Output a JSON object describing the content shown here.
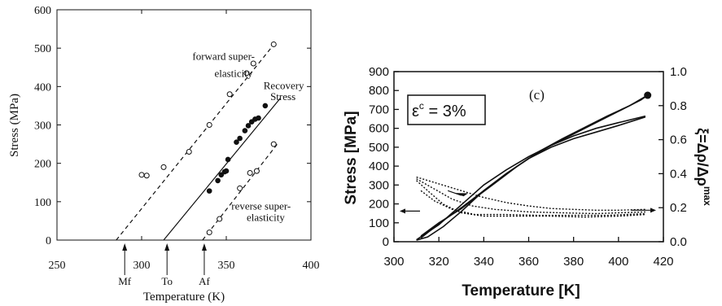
{
  "chart_data": [
    {
      "type": "scatter",
      "title": "",
      "xlabel": "Temperature (K)",
      "ylabel": "Stress (MPa)",
      "xlim": [
        250,
        400
      ],
      "ylim": [
        0,
        600
      ],
      "xticks": [
        "250",
        "300",
        "350",
        "400"
      ],
      "yticks": [
        "0",
        "100",
        "200",
        "300",
        "400",
        "500",
        "600"
      ],
      "grid": false,
      "series": [
        {
          "name": "forward super-elasticity",
          "marker": "open-circle",
          "points": [
            [
              300,
              170
            ],
            [
              303,
              168
            ],
            [
              313,
              190
            ],
            [
              328,
              230
            ],
            [
              340,
              300
            ],
            [
              352,
              380
            ],
            [
              362,
              435
            ],
            [
              366,
              460
            ],
            [
              378,
              510
            ]
          ]
        },
        {
          "name": "Recovery Stress",
          "marker": "filled-circle",
          "points": [
            [
              340,
              128
            ],
            [
              345,
              155
            ],
            [
              347,
              170
            ],
            [
              349,
              178
            ],
            [
              350,
              180
            ],
            [
              351,
              210
            ],
            [
              356,
              255
            ],
            [
              358,
              265
            ],
            [
              361,
              285
            ],
            [
              363,
              298
            ],
            [
              365,
              308
            ],
            [
              367,
              315
            ],
            [
              369,
              318
            ],
            [
              373,
              350
            ]
          ]
        },
        {
          "name": "reverse super-elasticity",
          "marker": "open-circle",
          "points": [
            [
              340,
              20
            ],
            [
              346,
              55
            ],
            [
              358,
              135
            ],
            [
              364,
              175
            ],
            [
              368,
              180
            ],
            [
              378,
              250
            ]
          ]
        }
      ],
      "lines": [
        {
          "style": "dashed",
          "from": [
            285,
            0
          ],
          "to": [
            380,
            520
          ]
        },
        {
          "style": "solid",
          "from": [
            313,
            0
          ],
          "to": [
            382,
            370
          ]
        },
        {
          "style": "dashed",
          "from": [
            336,
            0
          ],
          "to": [
            381,
            255
          ]
        }
      ],
      "annotations": [
        {
          "text": "forward super-",
          "at": [
            330,
            470
          ]
        },
        {
          "text": "elasticity",
          "at": [
            343,
            425
          ]
        },
        {
          "text": "Recovery",
          "at": [
            372,
            393
          ]
        },
        {
          "text": "Stress",
          "at": [
            376,
            365
          ]
        },
        {
          "text": "reverse super-",
          "at": [
            353,
            80
          ]
        },
        {
          "text": "elasticity",
          "at": [
            362,
            50
          ]
        }
      ],
      "markers_below_axis": [
        {
          "label": "Mf",
          "x": 290
        },
        {
          "label": "To",
          "x": 315
        },
        {
          "label": "Af",
          "x": 337
        }
      ]
    },
    {
      "type": "line",
      "title": "",
      "panel_label": "(c)",
      "equation": "ε",
      "equation_superscript": "c",
      "equation_rest": " = 3%",
      "xlabel": "Temperature [K]",
      "ylabel": "Stress [MPa]",
      "y2label": "ξ=Δρ/Δρ",
      "y2label_superscript": "max",
      "xlim": [
        300,
        420
      ],
      "ylim": [
        0,
        900
      ],
      "y2lim": [
        0,
        1.0
      ],
      "xticks": [
        "300",
        "320",
        "340",
        "360",
        "380",
        "400",
        "420"
      ],
      "yticks": [
        "0",
        "100",
        "200",
        "300",
        "400",
        "500",
        "600",
        "700",
        "800",
        "900"
      ],
      "y2ticks": [
        "0.0",
        "0.2",
        "0.4",
        "0.6",
        "0.8",
        "1.0"
      ],
      "grid": false,
      "series": [
        {
          "axis": "left",
          "style": "solid",
          "points": [
            [
              310,
              8
            ],
            [
              315,
              25
            ],
            [
              322,
              80
            ],
            [
              330,
              160
            ],
            [
              340,
              270
            ],
            [
              350,
              360
            ],
            [
              360,
              440
            ],
            [
              370,
              510
            ],
            [
              380,
              570
            ],
            [
              390,
              630
            ],
            [
              400,
              690
            ],
            [
              410,
              750
            ],
            [
              413,
              775
            ]
          ]
        },
        {
          "axis": "left",
          "style": "solid",
          "points": [
            [
              413,
              775
            ],
            [
              405,
              720
            ],
            [
              395,
              665
            ],
            [
              385,
              605
            ],
            [
              375,
              545
            ],
            [
              365,
              480
            ],
            [
              355,
              400
            ],
            [
              345,
              310
            ],
            [
              337,
              240
            ],
            [
              330,
              175
            ],
            [
              320,
              100
            ],
            [
              312,
              30
            ]
          ]
        },
        {
          "axis": "left",
          "style": "solid",
          "points": [
            [
              310,
              10
            ],
            [
              320,
              90
            ],
            [
              330,
              195
            ],
            [
              340,
              300
            ],
            [
              350,
              380
            ],
            [
              360,
              450
            ],
            [
              370,
              510
            ],
            [
              380,
              560
            ],
            [
              390,
              600
            ],
            [
              400,
              630
            ],
            [
              412,
              665
            ]
          ]
        },
        {
          "axis": "left",
          "style": "solid",
          "points": [
            [
              412,
              660
            ],
            [
              400,
              615
            ],
            [
              390,
              580
            ],
            [
              380,
              545
            ],
            [
              370,
              500
            ],
            [
              360,
              440
            ],
            [
              350,
              360
            ],
            [
              340,
              270
            ],
            [
              330,
              180
            ],
            [
              320,
              95
            ],
            [
              312,
              20
            ]
          ]
        },
        {
          "axis": "right",
          "style": "dotted",
          "points": [
            [
              310,
              0.38
            ],
            [
              320,
              0.34
            ],
            [
              330,
              0.3
            ],
            [
              340,
              0.26
            ],
            [
              350,
              0.23
            ],
            [
              360,
              0.21
            ],
            [
              370,
              0.195
            ],
            [
              380,
              0.19
            ],
            [
              390,
              0.185
            ],
            [
              400,
              0.185
            ],
            [
              412,
              0.19
            ]
          ]
        },
        {
          "axis": "right",
          "style": "dotted",
          "points": [
            [
              310,
              0.37
            ],
            [
              318,
              0.31
            ],
            [
              326,
              0.25
            ],
            [
              335,
              0.21
            ],
            [
              345,
              0.19
            ],
            [
              360,
              0.175
            ],
            [
              375,
              0.17
            ],
            [
              390,
              0.165
            ],
            [
              400,
              0.17
            ],
            [
              412,
              0.175
            ]
          ]
        },
        {
          "axis": "right",
          "style": "dotted",
          "points": [
            [
              310,
              0.36
            ],
            [
              315,
              0.3
            ],
            [
              322,
              0.22
            ],
            [
              330,
              0.17
            ],
            [
              340,
              0.15
            ],
            [
              355,
              0.15
            ],
            [
              370,
              0.15
            ],
            [
              385,
              0.145
            ],
            [
              400,
              0.15
            ],
            [
              412,
              0.16
            ]
          ]
        },
        {
          "axis": "right",
          "style": "dotted",
          "points": [
            [
              312,
              0.3
            ],
            [
              318,
              0.24
            ],
            [
              326,
              0.19
            ],
            [
              336,
              0.16
            ],
            [
              350,
              0.16
            ],
            [
              365,
              0.155
            ],
            [
              380,
              0.155
            ],
            [
              395,
              0.155
            ],
            [
              412,
              0.165
            ]
          ]
        }
      ],
      "end_marker": {
        "x": 413,
        "y": 775
      }
    }
  ]
}
